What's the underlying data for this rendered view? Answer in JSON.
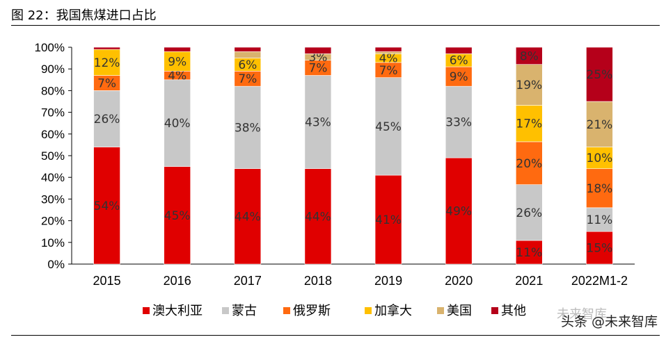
{
  "title": "图 22：我国焦煤进口占比",
  "watermark": {
    "faint": "未来智库",
    "main": "头条 @未来智库"
  },
  "chart_data": {
    "type": "bar",
    "stacked": true,
    "categories": [
      "2015",
      "2016",
      "2017",
      "2018",
      "2019",
      "2020",
      "2021",
      "2022M1-2"
    ],
    "ylim": [
      0,
      100
    ],
    "yticks": [
      "0%",
      "10%",
      "20%",
      "30%",
      "40%",
      "50%",
      "60%",
      "70%",
      "80%",
      "90%",
      "100%"
    ],
    "legend_position": "bottom",
    "series": [
      {
        "name": "澳大利亚",
        "color": "#E00000",
        "values": [
          54,
          45,
          44,
          44,
          41,
          49,
          11,
          15
        ],
        "labels": [
          "54%",
          "45%",
          "44%",
          "44%",
          "41%",
          "49%",
          "11%",
          "15%"
        ]
      },
      {
        "name": "蒙古",
        "color": "#C8C8C8",
        "values": [
          26,
          40,
          38,
          43,
          45,
          33,
          26,
          11
        ],
        "labels": [
          "26%",
          "40%",
          "38%",
          "43%",
          "45%",
          "33%",
          "26%",
          "11%"
        ]
      },
      {
        "name": "俄罗斯",
        "color": "#FF6A10",
        "values": [
          7,
          4,
          7,
          7,
          7,
          9,
          20,
          18
        ],
        "labels": [
          "7%",
          "4%",
          "7%",
          "7%",
          "7%",
          "9%",
          "20%",
          "18%"
        ]
      },
      {
        "name": "加拿大",
        "color": "#FFC000",
        "values": [
          12,
          9,
          6,
          0,
          4,
          6,
          17,
          10
        ],
        "labels": [
          "12%",
          "9%",
          "6%",
          "",
          "4%",
          "6%",
          "17%",
          "10%"
        ]
      },
      {
        "name": "美国",
        "color": "#D9B36E",
        "values": [
          0,
          0,
          3,
          3,
          1,
          0,
          19,
          21
        ],
        "labels": [
          "",
          "",
          "",
          "3%",
          "",
          "",
          "19%",
          "21%"
        ]
      },
      {
        "name": "其他",
        "color": "#B5001A",
        "values": [
          1,
          2,
          2,
          3,
          2,
          3,
          8,
          25
        ],
        "labels": [
          "",
          "",
          "",
          "",
          "",
          "",
          "8%",
          "25%"
        ]
      }
    ]
  }
}
